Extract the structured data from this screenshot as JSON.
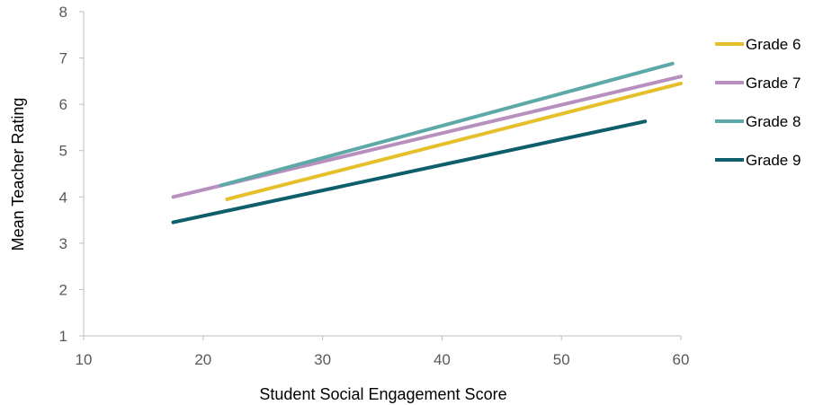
{
  "chart_data": {
    "type": "line",
    "title": "",
    "xlabel": "Student Social Engagement Score",
    "ylabel": "Mean Teacher Rating",
    "xlim": [
      10,
      60
    ],
    "ylim": [
      1,
      8
    ],
    "xticks": [
      "10",
      "20",
      "30",
      "40",
      "50",
      "60"
    ],
    "yticks": [
      "1",
      "2",
      "3",
      "4",
      "5",
      "6",
      "7",
      "8"
    ],
    "grid": false,
    "legend_position": "right",
    "series": [
      {
        "name": "Grade 6",
        "color": "#E5C02A",
        "points": [
          [
            22.0,
            3.95
          ],
          [
            60.0,
            6.45
          ]
        ]
      },
      {
        "name": "Grade 7",
        "color": "#B890BF",
        "points": [
          [
            17.5,
            4.0
          ],
          [
            60.0,
            6.6
          ]
        ]
      },
      {
        "name": "Grade 8",
        "color": "#5DA9A8",
        "points": [
          [
            21.5,
            4.25
          ],
          [
            59.3,
            6.88
          ]
        ]
      },
      {
        "name": "Grade 9",
        "color": "#0E5F6B",
        "points": [
          [
            17.5,
            3.45
          ],
          [
            57.0,
            5.63
          ]
        ]
      }
    ]
  }
}
